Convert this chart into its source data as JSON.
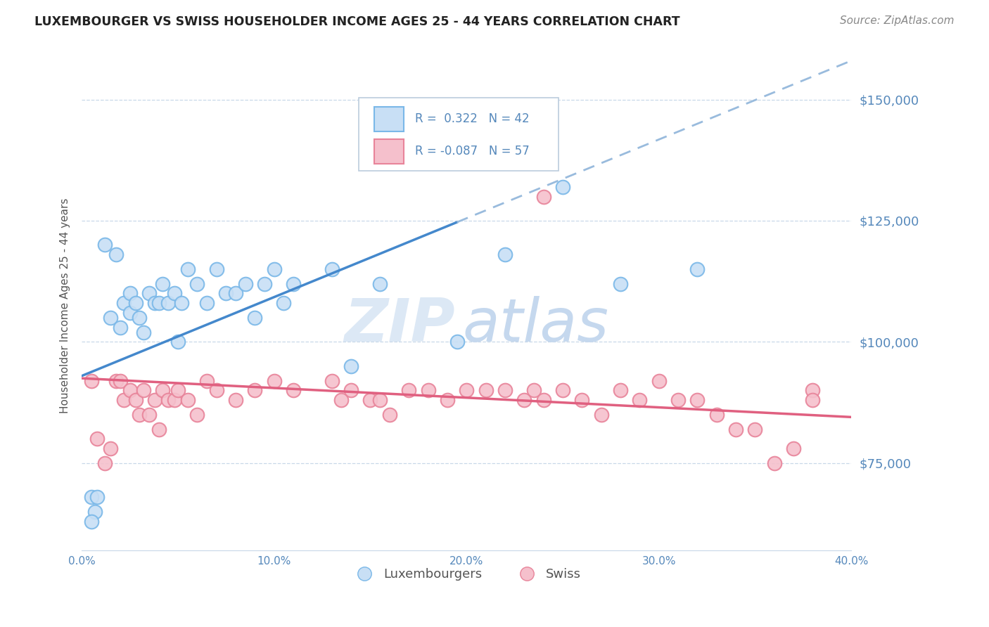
{
  "title": "LUXEMBOURGER VS SWISS HOUSEHOLDER INCOME AGES 25 - 44 YEARS CORRELATION CHART",
  "source_text": "Source: ZipAtlas.com",
  "ylabel": "Householder Income Ages 25 - 44 years",
  "xlim": [
    0.0,
    0.4
  ],
  "ylim": [
    57000,
    158000
  ],
  "yticks": [
    75000,
    100000,
    125000,
    150000
  ],
  "xticks": [
    0.0,
    0.1,
    0.2,
    0.3,
    0.4
  ],
  "blue_color": "#7ab8e8",
  "blue_fill": "#c8dff5",
  "pink_color": "#e8849a",
  "pink_fill": "#f5c0cc",
  "trend_blue_solid_color": "#4488cc",
  "trend_blue_dash_color": "#99bbdd",
  "trend_pink_color": "#e06080",
  "grid_color": "#c8d8e8",
  "title_color": "#222222",
  "source_color": "#888888",
  "axis_label_color": "#555555",
  "tick_label_color": "#5588bb",
  "watermark_zip_color": "#dce8f5",
  "watermark_atlas_color": "#c5d8ee",
  "trend_blue_x0": 0.0,
  "trend_blue_y0": 93000,
  "trend_blue_x1": 0.4,
  "trend_blue_y1": 158000,
  "trend_blue_solid_end": 0.195,
  "trend_pink_x0": 0.0,
  "trend_pink_y0": 92500,
  "trend_pink_x1": 0.4,
  "trend_pink_y1": 84500,
  "luxembourger_x": [
    0.005,
    0.007,
    0.012,
    0.015,
    0.018,
    0.02,
    0.022,
    0.025,
    0.025,
    0.028,
    0.03,
    0.032,
    0.035,
    0.038,
    0.04,
    0.042,
    0.045,
    0.048,
    0.05,
    0.052,
    0.055,
    0.06,
    0.065,
    0.07,
    0.075,
    0.08,
    0.085,
    0.09,
    0.095,
    0.1,
    0.105,
    0.11,
    0.13,
    0.14,
    0.155,
    0.195,
    0.22,
    0.25,
    0.28,
    0.32,
    0.005,
    0.008
  ],
  "luxembourger_y": [
    68000,
    65000,
    120000,
    105000,
    118000,
    103000,
    108000,
    110000,
    106000,
    108000,
    105000,
    102000,
    110000,
    108000,
    108000,
    112000,
    108000,
    110000,
    100000,
    108000,
    115000,
    112000,
    108000,
    115000,
    110000,
    110000,
    112000,
    105000,
    112000,
    115000,
    108000,
    112000,
    115000,
    95000,
    112000,
    100000,
    118000,
    132000,
    112000,
    115000,
    63000,
    68000
  ],
  "swiss_x": [
    0.005,
    0.008,
    0.012,
    0.015,
    0.018,
    0.02,
    0.022,
    0.025,
    0.028,
    0.03,
    0.032,
    0.035,
    0.038,
    0.04,
    0.042,
    0.045,
    0.048,
    0.05,
    0.055,
    0.06,
    0.065,
    0.07,
    0.08,
    0.09,
    0.1,
    0.11,
    0.13,
    0.135,
    0.14,
    0.15,
    0.155,
    0.16,
    0.17,
    0.18,
    0.19,
    0.2,
    0.21,
    0.22,
    0.23,
    0.235,
    0.24,
    0.25,
    0.26,
    0.27,
    0.28,
    0.29,
    0.3,
    0.31,
    0.32,
    0.33,
    0.34,
    0.35,
    0.36,
    0.37,
    0.38,
    0.38,
    0.24
  ],
  "swiss_y": [
    92000,
    80000,
    75000,
    78000,
    92000,
    92000,
    88000,
    90000,
    88000,
    85000,
    90000,
    85000,
    88000,
    82000,
    90000,
    88000,
    88000,
    90000,
    88000,
    85000,
    92000,
    90000,
    88000,
    90000,
    92000,
    90000,
    92000,
    88000,
    90000,
    88000,
    88000,
    85000,
    90000,
    90000,
    88000,
    90000,
    90000,
    90000,
    88000,
    90000,
    88000,
    90000,
    88000,
    85000,
    90000,
    88000,
    92000,
    88000,
    88000,
    85000,
    82000,
    82000,
    75000,
    78000,
    90000,
    88000,
    130000
  ]
}
